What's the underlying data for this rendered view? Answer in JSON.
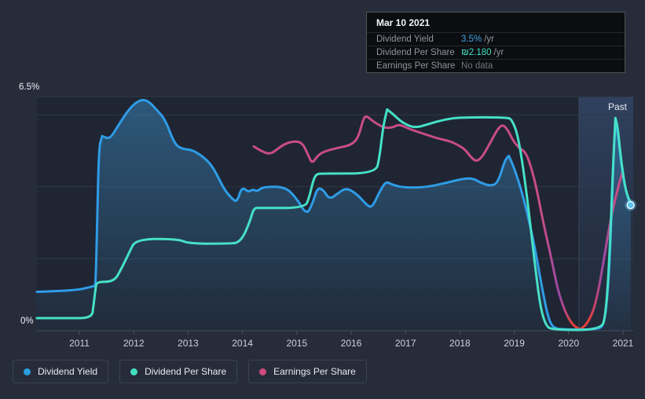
{
  "tooltip": {
    "date": "Mar 10 2021",
    "rows": [
      {
        "id": "dividend-yield",
        "label": "Dividend Yield",
        "value": "3.5%",
        "suffix": "/yr",
        "value_color": "#40a6e0"
      },
      {
        "id": "dividend-per-share",
        "label": "Dividend Per Share",
        "value": "₪2.180",
        "suffix": "/yr",
        "value_color": "#43dfc4"
      },
      {
        "id": "earnings-per-share",
        "label": "Earnings Per Share",
        "value": "No data",
        "suffix": "",
        "value_color": "#70767e"
      }
    ]
  },
  "axes": {
    "y_top_label": "6.5%",
    "y_bottom_label": "0%",
    "x_labels": [
      "2011",
      "2012",
      "2013",
      "2014",
      "2015",
      "2016",
      "2017",
      "2018",
      "2019",
      "2020",
      "2021"
    ]
  },
  "past_label": "Past",
  "legend": [
    {
      "id": "dividend-yield",
      "label": "Dividend Yield",
      "color": "#2b9fe2"
    },
    {
      "id": "dividend-per-share",
      "label": "Dividend Per Share",
      "color": "#41dfbe"
    },
    {
      "id": "earnings-per-share",
      "label": "Earnings Per Share",
      "color": "#cd4b7e"
    }
  ],
  "colors": {
    "page_bg": "#262c3a",
    "plot_bg": "#1f2532",
    "gridline": "#313946",
    "axis_line": "#444c5b",
    "tick": "#4a5260",
    "past_band": "#5684c9",
    "yield_line": "#2f9ce7",
    "yield_fill": "#3a8cc3",
    "dps_line": "#46e0c7",
    "eps_line": "#c84c87",
    "eps_negative": "#e2413b",
    "eps_transition": "#9a4aa5",
    "marker_fill": "#5cc3ee",
    "marker_ring": "#e8f6fd"
  },
  "chart_data": {
    "type": "area",
    "title": "Dividend history",
    "x_axis": {
      "tick_labels": [
        "2011",
        "2012",
        "2013",
        "2014",
        "2015",
        "2016",
        "2017",
        "2018",
        "2019",
        "2020",
        "2021"
      ],
      "range": [
        2010.2,
        2021.2
      ]
    },
    "y_axis": {
      "unit": "%",
      "min": 0,
      "max": 6.5,
      "gridline_values": [
        0,
        2,
        4,
        6,
        6.5
      ],
      "labeled_values": {
        "top": "6.5%",
        "bottom": "0%"
      }
    },
    "past_region": {
      "start": 2020.19,
      "end": 2021.2,
      "label": "Past"
    },
    "current_date": "Mar 10 2021",
    "current_values": {
      "dividend_yield": "3.5% /yr",
      "dividend_per_share": "₪2.180 /yr",
      "earnings_per_share": "No data"
    },
    "series": [
      {
        "name": "Dividend Yield",
        "unit": "% (left scale 0-6.5)",
        "color": "#2f9ce7",
        "area_fill": true,
        "points": [
          [
            2010.22,
            1.08
          ],
          [
            2010.6,
            1.1
          ],
          [
            2011.0,
            1.14
          ],
          [
            2011.13,
            1.19
          ],
          [
            2011.27,
            1.24
          ],
          [
            2011.3,
            1.26
          ],
          [
            2011.33,
            3.2
          ],
          [
            2011.36,
            5.1
          ],
          [
            2011.42,
            5.41
          ],
          [
            2011.42,
            5.41
          ],
          [
            2011.56,
            5.32
          ],
          [
            2011.71,
            5.69
          ],
          [
            2011.92,
            6.18
          ],
          [
            2012.11,
            6.42
          ],
          [
            2012.26,
            6.4
          ],
          [
            2012.43,
            6.13
          ],
          [
            2012.58,
            5.87
          ],
          [
            2012.75,
            5.19
          ],
          [
            2012.89,
            5.05
          ],
          [
            2013.08,
            5.03
          ],
          [
            2013.3,
            4.81
          ],
          [
            2013.47,
            4.53
          ],
          [
            2013.66,
            3.93
          ],
          [
            2013.82,
            3.65
          ],
          [
            2013.9,
            3.58
          ],
          [
            2013.99,
            4.0
          ],
          [
            2014.11,
            3.85
          ],
          [
            2014.19,
            3.93
          ],
          [
            2014.27,
            3.87
          ],
          [
            2014.38,
            4.0
          ],
          [
            2014.79,
            4.0
          ],
          [
            2015.0,
            3.67
          ],
          [
            2015.18,
            3.21
          ],
          [
            2015.29,
            3.54
          ],
          [
            2015.38,
            3.98
          ],
          [
            2015.49,
            3.91
          ],
          [
            2015.6,
            3.65
          ],
          [
            2015.74,
            3.8
          ],
          [
            2015.91,
            3.98
          ],
          [
            2016.12,
            3.78
          ],
          [
            2016.3,
            3.47
          ],
          [
            2016.39,
            3.43
          ],
          [
            2016.53,
            3.89
          ],
          [
            2016.64,
            4.15
          ],
          [
            2016.74,
            4.07
          ],
          [
            2016.94,
            3.98
          ],
          [
            2017.34,
            3.98
          ],
          [
            2017.7,
            4.09
          ],
          [
            2018.04,
            4.22
          ],
          [
            2018.24,
            4.24
          ],
          [
            2018.38,
            4.11
          ],
          [
            2018.57,
            4.02
          ],
          [
            2018.7,
            4.11
          ],
          [
            2018.83,
            4.75
          ],
          [
            2018.9,
            4.86
          ],
          [
            2018.9,
            4.86
          ],
          [
            2019.01,
            4.48
          ],
          [
            2019.18,
            3.65
          ],
          [
            2019.37,
            2.4
          ],
          [
            2019.51,
            1.19
          ],
          [
            2019.63,
            0.31
          ],
          [
            2019.73,
            0.06
          ],
          [
            2019.95,
            0.03
          ],
          [
            2020.55,
            0.03
          ],
          [
            2020.65,
            0.18
          ],
          [
            2020.72,
            1.0
          ],
          [
            2020.78,
            2.8
          ],
          [
            2020.83,
            5.0
          ],
          [
            2020.86,
            5.75
          ],
          [
            2020.86,
            5.75
          ],
          [
            2020.9,
            5.55
          ],
          [
            2020.97,
            4.59
          ],
          [
            2021.06,
            3.82
          ],
          [
            2021.14,
            3.49
          ]
        ]
      },
      {
        "name": "Dividend Per Share",
        "unit": "plotted on yield scale, current ₪2.180/yr",
        "color": "#46e0c7",
        "area_fill": false,
        "points": [
          [
            2010.22,
            0.35
          ],
          [
            2010.8,
            0.35
          ],
          [
            2011.23,
            0.35
          ],
          [
            2011.26,
            0.7
          ],
          [
            2011.3,
            1.2
          ],
          [
            2011.32,
            1.36
          ],
          [
            2011.64,
            1.36
          ],
          [
            2011.78,
            1.74
          ],
          [
            2011.92,
            2.18
          ],
          [
            2012.04,
            2.55
          ],
          [
            2012.82,
            2.55
          ],
          [
            2013.01,
            2.42
          ],
          [
            2013.83,
            2.42
          ],
          [
            2013.92,
            2.46
          ],
          [
            2014.02,
            2.62
          ],
          [
            2014.14,
            3.05
          ],
          [
            2014.21,
            3.41
          ],
          [
            2014.31,
            3.41
          ],
          [
            2015.15,
            3.41
          ],
          [
            2015.23,
            3.71
          ],
          [
            2015.29,
            4.11
          ],
          [
            2015.35,
            4.35
          ],
          [
            2015.47,
            4.37
          ],
          [
            2016.45,
            4.37
          ],
          [
            2016.52,
            4.81
          ],
          [
            2016.59,
            5.69
          ],
          [
            2016.66,
            6.15
          ],
          [
            2016.66,
            6.15
          ],
          [
            2016.77,
            6.02
          ],
          [
            2016.94,
            5.78
          ],
          [
            2017.17,
            5.63
          ],
          [
            2017.42,
            5.74
          ],
          [
            2017.71,
            5.87
          ],
          [
            2018.0,
            5.93
          ],
          [
            2018.86,
            5.93
          ],
          [
            2018.96,
            5.87
          ],
          [
            2019.08,
            5.36
          ],
          [
            2019.22,
            3.93
          ],
          [
            2019.37,
            1.96
          ],
          [
            2019.48,
            0.64
          ],
          [
            2019.58,
            0.15
          ],
          [
            2019.69,
            0.02
          ],
          [
            2020.6,
            0.02
          ],
          [
            2020.68,
            0.42
          ],
          [
            2020.75,
            1.96
          ],
          [
            2020.81,
            4.37
          ],
          [
            2020.86,
            5.91
          ],
          [
            2020.86,
            5.91
          ],
          [
            2020.9,
            5.69
          ],
          [
            2020.96,
            4.81
          ],
          [
            2021.03,
            4.04
          ],
          [
            2021.1,
            3.67
          ],
          [
            2021.16,
            3.52
          ]
        ]
      },
      {
        "name": "Earnings Per Share",
        "unit": "plotted on yield scale, red segment = loss period",
        "color": "#c84c87",
        "area_fill": false,
        "negative_segment": {
          "from": 2019.8,
          "to": 2020.55,
          "color": "#e2413b"
        },
        "points": [
          [
            2014.21,
            5.12
          ],
          [
            2014.32,
            5.01
          ],
          [
            2014.5,
            4.9
          ],
          [
            2014.63,
            5.03
          ],
          [
            2014.77,
            5.19
          ],
          [
            2014.95,
            5.27
          ],
          [
            2015.1,
            5.23
          ],
          [
            2015.21,
            4.88
          ],
          [
            2015.28,
            4.64
          ],
          [
            2015.38,
            4.86
          ],
          [
            2015.51,
            4.99
          ],
          [
            2015.75,
            5.08
          ],
          [
            2016.0,
            5.16
          ],
          [
            2016.13,
            5.36
          ],
          [
            2016.22,
            5.87
          ],
          [
            2016.27,
            5.98
          ],
          [
            2016.36,
            5.87
          ],
          [
            2016.48,
            5.74
          ],
          [
            2016.62,
            5.63
          ],
          [
            2016.77,
            5.65
          ],
          [
            2016.88,
            5.74
          ],
          [
            2017.08,
            5.6
          ],
          [
            2017.34,
            5.47
          ],
          [
            2017.6,
            5.34
          ],
          [
            2017.81,
            5.27
          ],
          [
            2017.97,
            5.16
          ],
          [
            2018.1,
            5.03
          ],
          [
            2018.21,
            4.81
          ],
          [
            2018.3,
            4.7
          ],
          [
            2018.4,
            4.81
          ],
          [
            2018.53,
            5.14
          ],
          [
            2018.69,
            5.6
          ],
          [
            2018.79,
            5.74
          ],
          [
            2018.89,
            5.56
          ],
          [
            2018.99,
            5.25
          ],
          [
            2019.11,
            5.05
          ],
          [
            2019.19,
            4.99
          ],
          [
            2019.28,
            4.7
          ],
          [
            2019.4,
            4.04
          ],
          [
            2019.54,
            2.95
          ],
          [
            2019.69,
            1.96
          ],
          [
            2019.8,
            1.12
          ],
          [
            2019.95,
            0.46
          ],
          [
            2020.09,
            0.13
          ],
          [
            2020.21,
            0.04
          ],
          [
            2020.21,
            0.04
          ],
          [
            2020.32,
            0.15
          ],
          [
            2020.45,
            0.51
          ],
          [
            2020.55,
            1.12
          ],
          [
            2020.67,
            2.18
          ],
          [
            2020.78,
            3.16
          ],
          [
            2020.9,
            3.93
          ],
          [
            2020.99,
            4.42
          ]
        ]
      }
    ],
    "end_marker": {
      "series": "Dividend Yield",
      "x": 2021.14,
      "y": 3.49
    }
  }
}
